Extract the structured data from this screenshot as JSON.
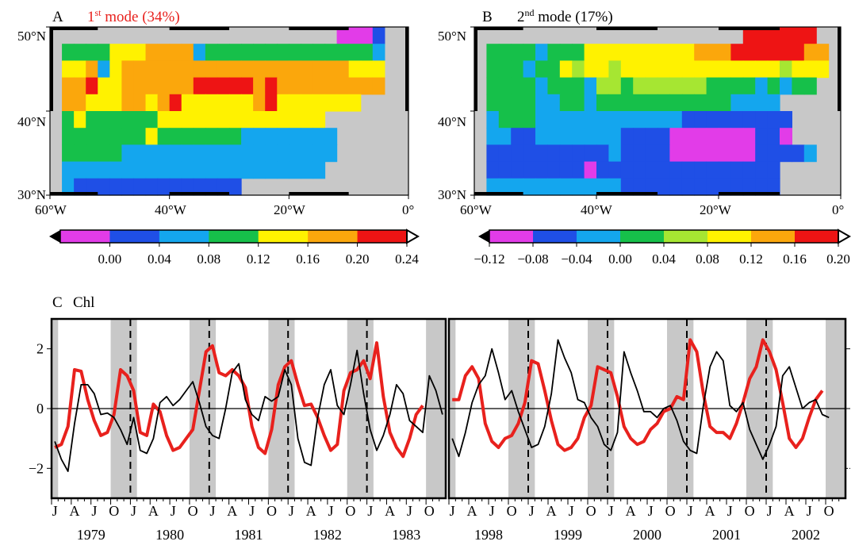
{
  "panel_a": {
    "letter": "A",
    "title_pre": "1",
    "title_sup": "st",
    "title_post": " mode (34%)",
    "title_color": "#e8211d",
    "lat_labels": [
      "50°N",
      "40°N",
      "30°N"
    ],
    "lon_labels": [
      "60°W",
      "40°W",
      "20°W",
      "0°"
    ],
    "colorbar_ticks": [
      "0.00",
      "0.04",
      "0.08",
      "0.12",
      "0.16",
      "0.20",
      "0.24"
    ]
  },
  "panel_b": {
    "letter": "B",
    "title_pre": "2",
    "title_sup": "nd",
    "title_post": " mode (17%)",
    "title_color": "#000000",
    "lat_labels": [
      "50°N",
      "40°N",
      "30°N"
    ],
    "lon_labels": [
      "60°W",
      "40°W",
      "20°W",
      "0°"
    ],
    "colorbar_ticks": [
      "−0.12",
      "−0.08",
      "−0.04",
      "0.00",
      "0.04",
      "0.08",
      "0.12",
      "0.16",
      "0.20"
    ]
  },
  "panel_c": {
    "letter": "C",
    "title": "Chl",
    "month_letters": [
      "J",
      "A",
      "J",
      "O"
    ],
    "years_left": [
      "1979",
      "1980",
      "1981",
      "1982",
      "1983"
    ],
    "years_right": [
      "1998",
      "1999",
      "2000",
      "2001",
      "2002"
    ]
  },
  "colors": {
    "magenta": "#e23ce8",
    "blue": "#1f4fe6",
    "lightblue": "#14a6ee",
    "green": "#16c04a",
    "lightgreen": "#a6e632",
    "yellow": "#fff200",
    "orange": "#fba70c",
    "red": "#ee1414",
    "land": "#c8c8c8",
    "shade": "#c8c8c8",
    "series1": "#e8211d",
    "series2": "#000000"
  },
  "chart_data": [
    {
      "type": "heatmap",
      "title": "1st mode (34%)",
      "xlabel": "",
      "ylabel": "",
      "xlim": [
        -60,
        0
      ],
      "ylim": [
        30,
        50
      ],
      "colorbar": {
        "bins": [
          -0.04,
          0.0,
          0.04,
          0.08,
          0.12,
          0.16,
          0.2,
          0.24
        ],
        "colors": [
          "#e23ce8",
          "#1f4fe6",
          "#14a6ee",
          "#16c04a",
          "#fff200",
          "#fba70c",
          "#ee1414"
        ],
        "ticks": [
          0.0,
          0.04,
          0.08,
          0.12,
          0.16,
          0.2,
          0.24
        ]
      },
      "lon_edges": [
        -60,
        -58,
        -56,
        -54,
        -52,
        -50,
        -48,
        -46,
        -44,
        -42,
        -40,
        -38,
        -36,
        -34,
        -32,
        -30,
        -28,
        -26,
        -24,
        -22,
        -20,
        -18,
        -16,
        -14,
        -12,
        -10,
        -8,
        -6,
        -4,
        -2,
        0
      ],
      "lat_edges": [
        50,
        48,
        46,
        44,
        42,
        40,
        38,
        36,
        34,
        32,
        30
      ],
      "grid": [
        "NNNNNNNNNNNNNNNNNNNNNNNNMMMBNN",
        "NGGGGYYYOOOOLGGGGGGGGGGGGGGLNN",
        "NYYOLYOOOOOOOOOOOOOOOOOOOYYYNN",
        "NOORYYOOOOOORRRRROROOOOOOOOONN",
        "NOOYYYOOYORYYYYYYORYYYYYYYNNNN",
        "NGYGGGGGGYYYYYYYYYYYYYYNNNNNNN",
        "NGGGGGGGYGGGGGGGLLLLLLLLNNNNNN",
        "NGGGGGLLLLLLLLLLLLLLLLLLNNNNNN",
        "NLLLLLLLLLLLLLLLLLLLLLLNNNNNNN",
        "NLBBBBBBBBBBBBBBNNNNNNNNNNNNNN"
      ]
    },
    {
      "type": "heatmap",
      "title": "2nd mode (17%)",
      "xlabel": "",
      "ylabel": "",
      "xlim": [
        -60,
        0
      ],
      "ylim": [
        30,
        50
      ],
      "colorbar": {
        "bins": [
          -0.16,
          -0.12,
          -0.08,
          -0.04,
          0.0,
          0.04,
          0.08,
          0.12,
          0.16,
          0.2
        ],
        "colors": [
          "#e23ce8",
          "#1f4fe6",
          "#14a6ee",
          "#16c04a",
          "#a6e632",
          "#fff200",
          "#fba70c",
          "#ee1414"
        ],
        "ticks": [
          -0.12,
          -0.08,
          -0.04,
          0.0,
          0.04,
          0.08,
          0.12,
          0.16,
          0.2
        ]
      },
      "lon_edges": [
        -60,
        -58,
        -56,
        -54,
        -52,
        -50,
        -48,
        -46,
        -44,
        -42,
        -40,
        -38,
        -36,
        -34,
        -32,
        -30,
        -28,
        -26,
        -24,
        -22,
        -20,
        -18,
        -16,
        -14,
        -12,
        -10,
        -8,
        -6,
        -4,
        -2,
        0
      ],
      "lat_edges": [
        50,
        48,
        46,
        44,
        42,
        40,
        38,
        36,
        34,
        32,
        30
      ],
      "grid": [
        "NNNNNNNNNNNNNNNNNNNNNNRRRRRRNN",
        "NGGGGLGGGYYYYYYYYYOOORRRRRROON",
        "NGGGLGGYVYYVYYYYYYYYYYYYYVYYYN",
        "NGGGGLGGGLVVGVVVVVVGGGGLGLGGNN",
        "NGGGGLLGGLGGGGGGGGGGGLLLLNNNNN",
        "NLGGGLLLLLLLLLLLLBBBBBBBBBNNNN",
        "NLLBBLLLLLLLBBBBMMMMMMMBBMNNNN",
        "NBBBBBBBBBBLBBBBMMMMMMMBBBBLNN",
        "NBBBBBBBBMBBBBBBBBBBBBBBBNNNNN",
        "NLLLLLLLLLLLBBBBBBBBBBBBBNNNNN"
      ]
    },
    {
      "type": "line",
      "title": "Chl",
      "xlabel": "",
      "ylabel": "",
      "ylim": [
        -3,
        3
      ],
      "yticks": [
        -2,
        0,
        2
      ],
      "segments": [
        "1979-1983",
        "1998-2002"
      ],
      "x_months": "monthly, January to December",
      "series": [
        {
          "color": "#e8211d",
          "values_1979_1983": [
            -1.3,
            -1.2,
            -0.6,
            1.3,
            1.25,
            0.3,
            -0.4,
            -0.9,
            -0.8,
            -0.2,
            1.3,
            1.1,
            0.6,
            -0.8,
            -0.9,
            0.15,
            -0.1,
            -0.9,
            -1.4,
            -1.3,
            -1.0,
            -0.7,
            0.6,
            1.9,
            2.1,
            1.2,
            1.1,
            1.3,
            1.1,
            0.7,
            -0.6,
            -1.3,
            -1.5,
            -0.7,
            0.8,
            1.4,
            1.6,
            0.8,
            0.1,
            0.15,
            -0.3,
            -0.9,
            -1.4,
            -1.2,
            0.6,
            1.2,
            1.3,
            1.6,
            1.0,
            2.2,
            0.4,
            -0.8,
            -1.3,
            -1.6,
            -1.0,
            -0.2,
            0.1
          ],
          "values_1998_2002": [
            0.3,
            0.3,
            1.1,
            1.4,
            1.0,
            -0.5,
            -1.1,
            -1.3,
            -1.0,
            -0.9,
            -0.5,
            0.2,
            1.6,
            1.5,
            0.6,
            -0.4,
            -1.2,
            -1.4,
            -1.3,
            -1.0,
            -0.3,
            0.1,
            1.4,
            1.3,
            1.2,
            0.4,
            -0.6,
            -1.0,
            -1.2,
            -1.1,
            -0.7,
            -0.5,
            -0.1,
            0.0,
            0.4,
            0.3,
            2.3,
            1.9,
            0.5,
            -0.6,
            -0.8,
            -0.8,
            -1.0,
            -0.5,
            0.2,
            1.0,
            1.4,
            2.3,
            1.9,
            1.3,
            0.2,
            -1.0,
            -1.3,
            -1.0,
            -0.3,
            0.3,
            0.6
          ]
        },
        {
          "color": "#000000",
          "values_1979_1983": [
            -1.1,
            -1.7,
            -2.1,
            -0.5,
            0.8,
            0.8,
            0.5,
            -0.2,
            -0.15,
            -0.3,
            -0.7,
            -1.2,
            -0.3,
            -1.4,
            -1.5,
            -1.0,
            0.2,
            0.4,
            0.1,
            0.3,
            0.6,
            0.9,
            0.2,
            -0.6,
            -0.9,
            -1.0,
            0.0,
            1.2,
            1.5,
            0.3,
            -0.2,
            -0.4,
            0.4,
            0.25,
            0.4,
            1.3,
            0.8,
            -1.0,
            -1.8,
            -1.9,
            -0.3,
            0.8,
            1.3,
            0.1,
            -0.2,
            0.8,
            1.95,
            0.5,
            -0.7,
            -1.4,
            -0.9,
            -0.2,
            0.8,
            0.5,
            -0.4,
            -0.6,
            -0.8,
            1.1,
            0.6,
            -0.2
          ],
          "values_1998_2002": [
            -1.0,
            -1.6,
            -0.8,
            0.2,
            0.8,
            1.1,
            2.0,
            1.2,
            0.3,
            0.6,
            -0.1,
            -0.7,
            -1.3,
            -1.2,
            -0.6,
            0.5,
            2.3,
            1.7,
            1.2,
            0.3,
            0.2,
            -0.3,
            -0.6,
            -1.2,
            -1.4,
            -0.8,
            1.9,
            1.2,
            0.6,
            -0.1,
            -0.1,
            -0.3,
            0.0,
            0.1,
            -0.4,
            -1.1,
            -1.4,
            -1.5,
            0.1,
            1.4,
            1.9,
            1.6,
            0.1,
            -0.1,
            0.2,
            -0.7,
            -1.2,
            -1.7,
            -1.2,
            -0.6,
            1.1,
            1.4,
            0.7,
            0.0,
            0.2,
            0.3,
            -0.2,
            -0.3
          ]
        }
      ]
    }
  ]
}
